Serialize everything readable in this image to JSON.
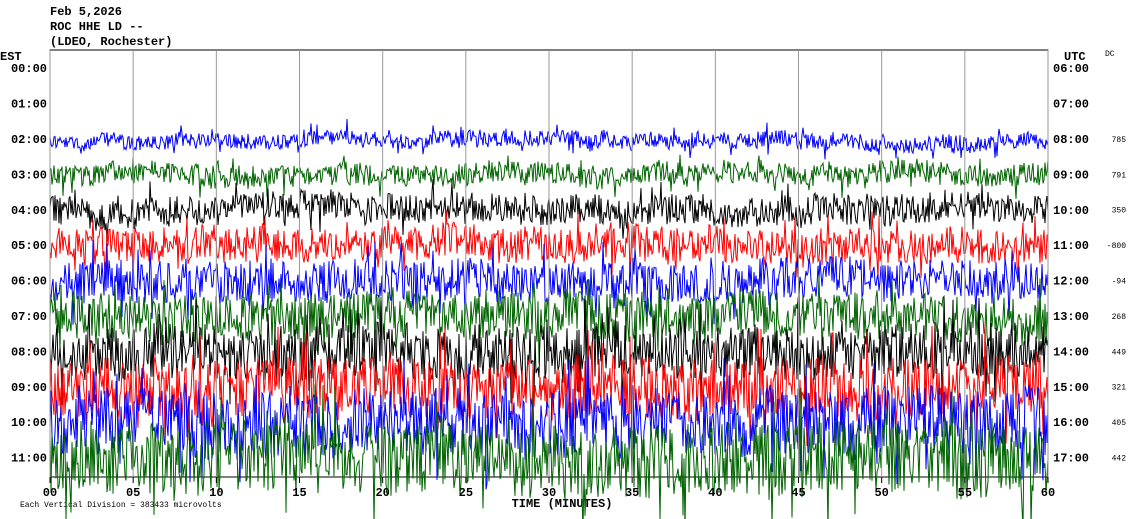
{
  "chart_data": {
    "type": "helicorder",
    "title_lines": [
      "Feb 5,2026",
      "ROC HHE LD --",
      "(LDEO, Rochester)"
    ],
    "left_axis_label": "EST",
    "right_axis_label": "UTC",
    "dc_label": "DC",
    "left_rows": [
      "00:00",
      "01:00",
      "02:00",
      "03:00",
      "04:00",
      "05:00",
      "06:00",
      "07:00",
      "08:00",
      "09:00",
      "10:00",
      "11:00"
    ],
    "right_rows": [
      "06:00",
      "07:00",
      "08:00",
      "09:00",
      "10:00",
      "11:00",
      "12:00",
      "13:00",
      "14:00",
      "15:00",
      "16:00",
      "17:00"
    ],
    "dc_values": [
      null,
      null,
      785,
      791,
      350,
      -800,
      -94,
      268,
      449,
      321,
      405,
      442
    ],
    "xlim": [
      0,
      60
    ],
    "xticks": [
      {
        "value": 0,
        "label": "00"
      },
      {
        "value": 5,
        "label": "05"
      },
      {
        "value": 10,
        "label": "10"
      },
      15,
      20,
      25,
      30,
      35,
      40,
      45,
      50,
      55,
      60
    ],
    "xlabel": "TIME (MINUTES)",
    "footnote": "Each Vertical Division = 383433 microvolts",
    "trace_colors": [
      "#0000ff",
      "#006400",
      "#000000",
      "#ff0000"
    ],
    "grid": true
  }
}
